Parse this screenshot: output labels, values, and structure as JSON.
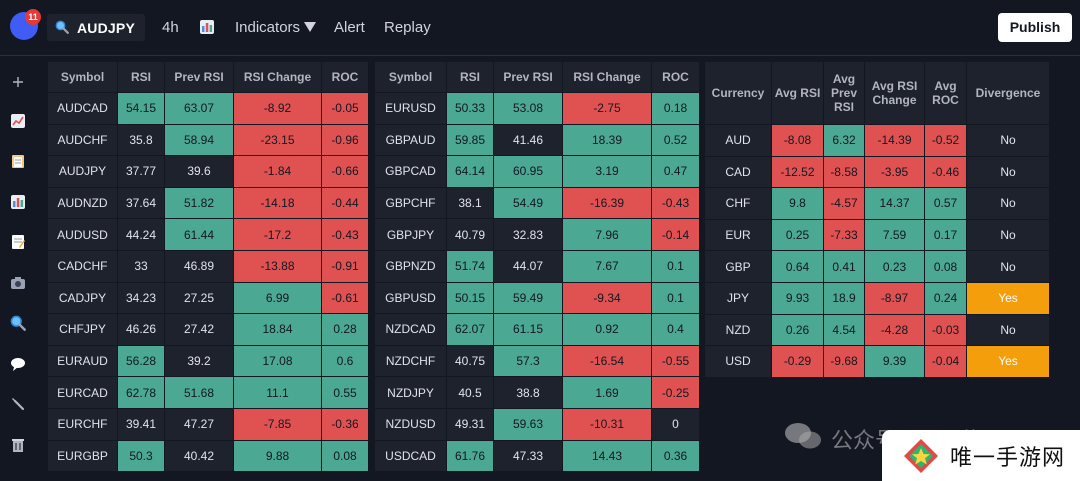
{
  "toolbar": {
    "notification_count": "11",
    "symbol": "AUDJPY",
    "interval": "4h",
    "indicators_label": "Indicators",
    "alert_label": "Alert",
    "replay_label": "Replay",
    "publish_label": "Publish"
  },
  "sidebar_icons": [
    "plus-icon",
    "line-chart-icon",
    "clipboard-icon",
    "bar-chart-icon",
    "memo-icon",
    "camera-icon",
    "magnifier-icon",
    "speech-bubble-icon",
    "wrench-icon",
    "trash-icon"
  ],
  "colors": {
    "positive": "#4aa893",
    "negative": "#e05252",
    "divergence": "#f59e0b",
    "neutral": "#1e222d"
  },
  "pairs_table_1": {
    "headers": [
      "Symbol",
      "RSI",
      "Prev RSI",
      "RSI Change",
      "ROC"
    ],
    "rows": [
      {
        "cells": [
          "AUDCAD",
          "54.15",
          "63.07",
          "-8.92",
          "-0.05"
        ],
        "styles": [
          "n",
          "g",
          "g",
          "r",
          "r"
        ]
      },
      {
        "cells": [
          "AUDCHF",
          "35.8",
          "58.94",
          "-23.15",
          "-0.96"
        ],
        "styles": [
          "n",
          "n",
          "g",
          "r",
          "r"
        ]
      },
      {
        "cells": [
          "AUDJPY",
          "37.77",
          "39.6",
          "-1.84",
          "-0.66"
        ],
        "styles": [
          "n",
          "n",
          "n",
          "r",
          "r"
        ]
      },
      {
        "cells": [
          "AUDNZD",
          "37.64",
          "51.82",
          "-14.18",
          "-0.44"
        ],
        "styles": [
          "n",
          "n",
          "g",
          "r",
          "r"
        ]
      },
      {
        "cells": [
          "AUDUSD",
          "44.24",
          "61.44",
          "-17.2",
          "-0.43"
        ],
        "styles": [
          "n",
          "n",
          "g",
          "r",
          "r"
        ]
      },
      {
        "cells": [
          "CADCHF",
          "33",
          "46.89",
          "-13.88",
          "-0.91"
        ],
        "styles": [
          "n",
          "n",
          "n",
          "r",
          "r"
        ]
      },
      {
        "cells": [
          "CADJPY",
          "34.23",
          "27.25",
          "6.99",
          "-0.61"
        ],
        "styles": [
          "n",
          "n",
          "n",
          "g",
          "r"
        ]
      },
      {
        "cells": [
          "CHFJPY",
          "46.26",
          "27.42",
          "18.84",
          "0.28"
        ],
        "styles": [
          "n",
          "n",
          "n",
          "g",
          "g"
        ]
      },
      {
        "cells": [
          "EURAUD",
          "56.28",
          "39.2",
          "17.08",
          "0.6"
        ],
        "styles": [
          "n",
          "g",
          "n",
          "g",
          "g"
        ]
      },
      {
        "cells": [
          "EURCAD",
          "62.78",
          "51.68",
          "11.1",
          "0.55"
        ],
        "styles": [
          "n",
          "g",
          "g",
          "g",
          "g"
        ]
      },
      {
        "cells": [
          "EURCHF",
          "39.41",
          "47.27",
          "-7.85",
          "-0.36"
        ],
        "styles": [
          "n",
          "n",
          "n",
          "r",
          "r"
        ]
      },
      {
        "cells": [
          "EURGBP",
          "50.3",
          "40.42",
          "9.88",
          "0.08"
        ],
        "styles": [
          "n",
          "g",
          "n",
          "g",
          "g"
        ]
      }
    ]
  },
  "pairs_table_2": {
    "headers": [
      "Symbol",
      "RSI",
      "Prev RSI",
      "RSI Change",
      "ROC"
    ],
    "rows": [
      {
        "cells": [
          "EURUSD",
          "50.33",
          "53.08",
          "-2.75",
          "0.18"
        ],
        "styles": [
          "n",
          "g",
          "g",
          "r",
          "g"
        ]
      },
      {
        "cells": [
          "GBPAUD",
          "59.85",
          "41.46",
          "18.39",
          "0.52"
        ],
        "styles": [
          "n",
          "g",
          "n",
          "g",
          "g"
        ]
      },
      {
        "cells": [
          "GBPCAD",
          "64.14",
          "60.95",
          "3.19",
          "0.47"
        ],
        "styles": [
          "n",
          "g",
          "g",
          "g",
          "g"
        ]
      },
      {
        "cells": [
          "GBPCHF",
          "38.1",
          "54.49",
          "-16.39",
          "-0.43"
        ],
        "styles": [
          "n",
          "n",
          "g",
          "r",
          "r"
        ]
      },
      {
        "cells": [
          "GBPJPY",
          "40.79",
          "32.83",
          "7.96",
          "-0.14"
        ],
        "styles": [
          "n",
          "n",
          "n",
          "g",
          "r"
        ]
      },
      {
        "cells": [
          "GBPNZD",
          "51.74",
          "44.07",
          "7.67",
          "0.1"
        ],
        "styles": [
          "n",
          "g",
          "n",
          "g",
          "g"
        ]
      },
      {
        "cells": [
          "GBPUSD",
          "50.15",
          "59.49",
          "-9.34",
          "0.1"
        ],
        "styles": [
          "n",
          "g",
          "g",
          "r",
          "g"
        ]
      },
      {
        "cells": [
          "NZDCAD",
          "62.07",
          "61.15",
          "0.92",
          "0.4"
        ],
        "styles": [
          "n",
          "g",
          "g",
          "g",
          "g"
        ]
      },
      {
        "cells": [
          "NZDCHF",
          "40.75",
          "57.3",
          "-16.54",
          "-0.55"
        ],
        "styles": [
          "n",
          "n",
          "g",
          "r",
          "r"
        ]
      },
      {
        "cells": [
          "NZDJPY",
          "40.5",
          "38.8",
          "1.69",
          "-0.25"
        ],
        "styles": [
          "n",
          "n",
          "n",
          "g",
          "r"
        ]
      },
      {
        "cells": [
          "NZDUSD",
          "49.31",
          "59.63",
          "-10.31",
          "0"
        ],
        "styles": [
          "n",
          "n",
          "g",
          "r",
          "n"
        ]
      },
      {
        "cells": [
          "USDCAD",
          "61.76",
          "47.33",
          "14.43",
          "0.36"
        ],
        "styles": [
          "n",
          "g",
          "n",
          "g",
          "g"
        ]
      }
    ]
  },
  "currency_table": {
    "headers": [
      "Currency",
      "Avg RSI",
      "Avg Prev RSI",
      "Avg RSI Change",
      "Avg ROC",
      "Divergence"
    ],
    "rows": [
      {
        "cells": [
          "AUD",
          "-8.08",
          "6.32",
          "-14.39",
          "-0.52",
          "No"
        ],
        "styles": [
          "n",
          "r",
          "g",
          "r",
          "r",
          "n"
        ]
      },
      {
        "cells": [
          "CAD",
          "-12.52",
          "-8.58",
          "-3.95",
          "-0.46",
          "No"
        ],
        "styles": [
          "n",
          "r",
          "r",
          "r",
          "r",
          "n"
        ]
      },
      {
        "cells": [
          "CHF",
          "9.8",
          "-4.57",
          "14.37",
          "0.57",
          "No"
        ],
        "styles": [
          "n",
          "g",
          "r",
          "g",
          "g",
          "n"
        ]
      },
      {
        "cells": [
          "EUR",
          "0.25",
          "-7.33",
          "7.59",
          "0.17",
          "No"
        ],
        "styles": [
          "n",
          "g",
          "r",
          "g",
          "g",
          "n"
        ]
      },
      {
        "cells": [
          "GBP",
          "0.64",
          "0.41",
          "0.23",
          "0.08",
          "No"
        ],
        "styles": [
          "n",
          "g",
          "g",
          "g",
          "g",
          "n"
        ]
      },
      {
        "cells": [
          "JPY",
          "9.93",
          "18.9",
          "-8.97",
          "0.24",
          "Yes"
        ],
        "styles": [
          "n",
          "g",
          "g",
          "r",
          "g",
          "o"
        ]
      },
      {
        "cells": [
          "NZD",
          "0.26",
          "4.54",
          "-4.28",
          "-0.03",
          "No"
        ],
        "styles": [
          "n",
          "g",
          "g",
          "r",
          "r",
          "n"
        ]
      },
      {
        "cells": [
          "USD",
          "-0.29",
          "-9.68",
          "9.39",
          "-0.04",
          "Yes"
        ],
        "styles": [
          "n",
          "r",
          "r",
          "g",
          "r",
          "o"
        ]
      }
    ]
  },
  "watermark": {
    "channel": "公众号 · 易子信",
    "site": "唯一手游网"
  }
}
